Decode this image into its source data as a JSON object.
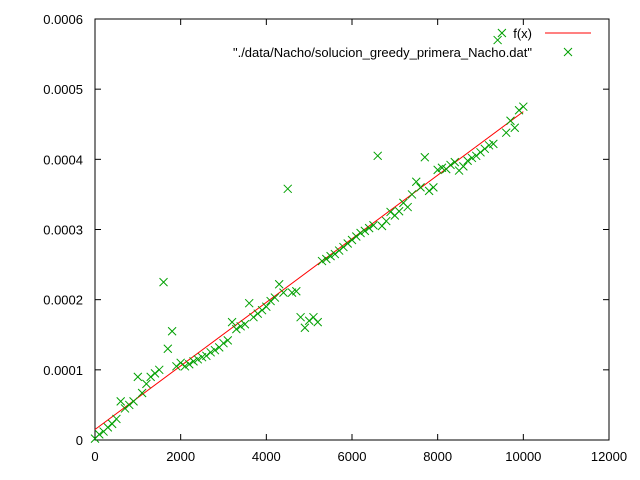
{
  "chart_data": {
    "type": "scatter",
    "title": "",
    "xlabel": "",
    "ylabel": "",
    "xlim": [
      0,
      12000
    ],
    "ylim": [
      0,
      0.0006
    ],
    "x_ticks": [
      "0",
      "2000",
      "4000",
      "6000",
      "8000",
      "10000",
      "12000"
    ],
    "y_ticks": [
      "0",
      "0.0001",
      "0.0002",
      "0.0003",
      "0.0004",
      "0.0005",
      "0.0006"
    ],
    "grid": false,
    "legend_position": "top-right",
    "series": [
      {
        "name": "f(x)",
        "kind": "line",
        "color": "#ff0000",
        "x": [
          0,
          10000
        ],
        "y": [
          1.5e-05,
          0.000468
        ]
      },
      {
        "name": "\"./data/Nacho/solucion_greedy_primera_Nacho.dat\"",
        "kind": "points",
        "marker": "x",
        "color": "#00a000",
        "x": [
          0,
          100,
          200,
          300,
          400,
          500,
          600,
          700,
          800,
          900,
          1000,
          1100,
          1200,
          1300,
          1400,
          1500,
          1600,
          1700,
          1800,
          1900,
          2000,
          2100,
          2200,
          2300,
          2400,
          2500,
          2600,
          2700,
          2800,
          2900,
          3000,
          3100,
          3200,
          3300,
          3400,
          3500,
          3600,
          3700,
          3800,
          3900,
          4000,
          4100,
          4200,
          4300,
          4400,
          4500,
          4600,
          4700,
          4800,
          4900,
          5000,
          5100,
          5200,
          5300,
          5400,
          5500,
          5600,
          5700,
          5800,
          5900,
          6000,
          6100,
          6200,
          6300,
          6400,
          6500,
          6600,
          6700,
          6800,
          6900,
          7000,
          7100,
          7200,
          7300,
          7400,
          7500,
          7600,
          7700,
          7800,
          7900,
          8000,
          8100,
          8200,
          8300,
          8400,
          8500,
          8600,
          8700,
          8800,
          8900,
          9000,
          9100,
          9200,
          9300,
          9400,
          9500,
          9600,
          9700,
          9800,
          9900,
          10000
        ],
        "y": [
          2e-06,
          8e-06,
          1.2e-05,
          1.8e-05,
          2.3e-05,
          3e-05,
          5.5e-05,
          4.5e-05,
          5e-05,
          5.5e-05,
          9e-05,
          6.7e-05,
          8e-05,
          9e-05,
          9.5e-05,
          0.0001,
          0.000225,
          0.00013,
          0.000155,
          0.000105,
          0.00011,
          0.000105,
          0.000108,
          0.000112,
          0.000115,
          0.000118,
          0.00012,
          0.000125,
          0.000128,
          0.000132,
          0.000138,
          0.000142,
          0.000168,
          0.000158,
          0.000162,
          0.000165,
          0.000195,
          0.000175,
          0.00018,
          0.000185,
          0.00019,
          0.000198,
          0.000203,
          0.000222,
          0.00021,
          0.000358,
          0.00021,
          0.000212,
          0.000175,
          0.00016,
          0.00017,
          0.000175,
          0.000168,
          0.000255,
          0.000258,
          0.000262,
          0.000265,
          0.00027,
          0.000275,
          0.00028,
          0.000285,
          0.00029,
          0.000295,
          0.000298,
          0.000302,
          0.000306,
          0.000405,
          0.000305,
          0.000312,
          0.000325,
          0.00032,
          0.000326,
          0.000338,
          0.000332,
          0.00035,
          0.000368,
          0.00036,
          0.000403,
          0.000355,
          0.00036,
          0.000385,
          0.000388,
          0.000386,
          0.000392,
          0.000396,
          0.000384,
          0.00039,
          0.000398,
          0.000402,
          0.000405,
          0.00041,
          0.000415,
          0.00042,
          0.000422,
          0.00057,
          0.00058,
          0.000438,
          0.000455,
          0.000445,
          0.00047,
          0.000475
        ]
      }
    ]
  }
}
